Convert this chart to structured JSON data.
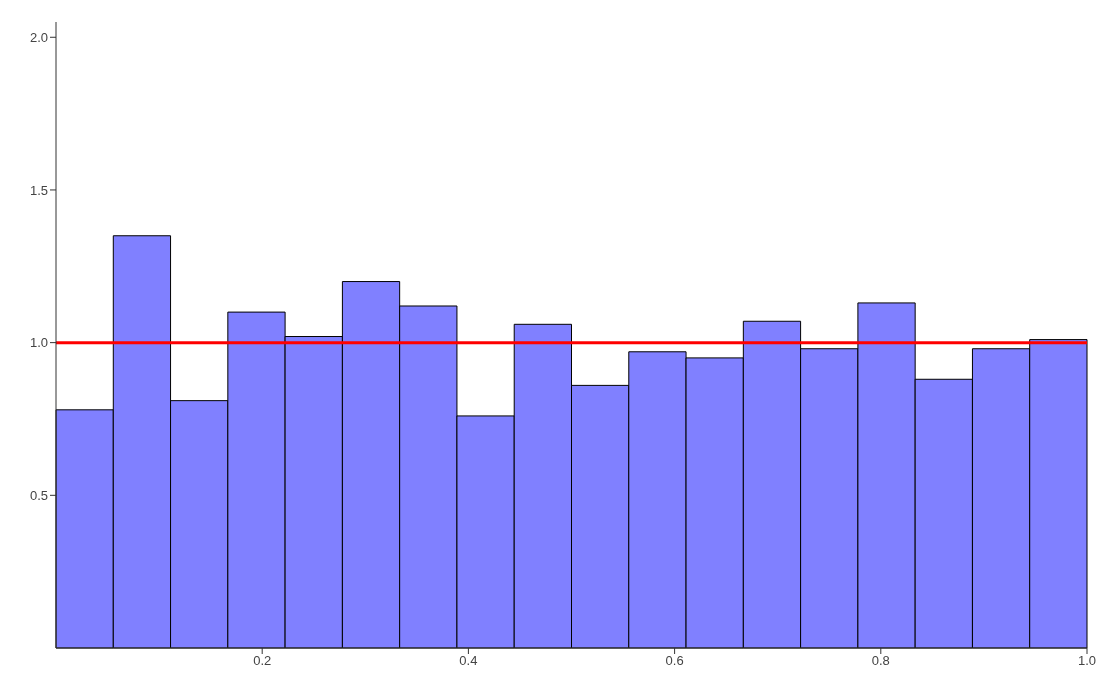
{
  "chart_data": {
    "type": "histogram",
    "bins": [
      0,
      0.05556,
      0.11111,
      0.16667,
      0.22222,
      0.27778,
      0.33333,
      0.38889,
      0.44444,
      0.5,
      0.55556,
      0.61111,
      0.66667,
      0.72222,
      0.77778,
      0.83333,
      0.88889,
      0.94444,
      1
    ],
    "values": [
      0.78,
      1.35,
      0.81,
      1.1,
      1.02,
      1.2,
      1.12,
      0.76,
      1.06,
      0.86,
      0.97,
      0.95,
      1.07,
      0.98,
      1.13,
      0.88,
      0.98,
      1.01
    ],
    "color": "#8080ff",
    "xlim": [
      0,
      1
    ],
    "xticks": [
      0.2,
      0.4,
      0.6,
      0.8,
      {
        "value": 1,
        "label": "1.0"
      }
    ],
    "ylim": [
      0,
      2.05
    ],
    "yticks": [
      0.5,
      {
        "value": 1,
        "label": "1.0"
      },
      1.5,
      {
        "value": 2,
        "label": "2.0"
      }
    ],
    "ref_lines": [
      {
        "axis": "y",
        "value": 1,
        "color": "#ff0000"
      }
    ],
    "grid": false
  }
}
